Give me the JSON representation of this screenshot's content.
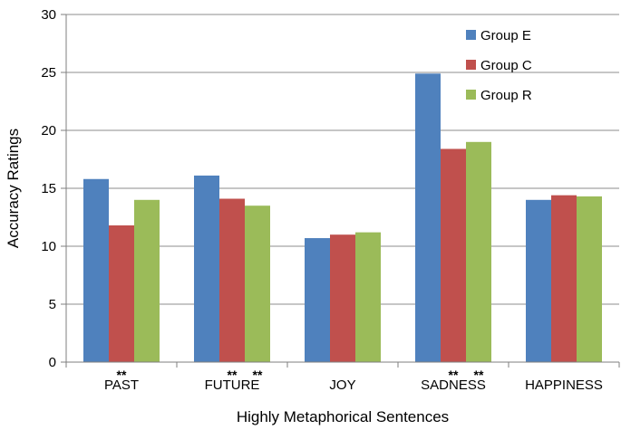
{
  "chart_data": {
    "type": "bar",
    "xlabel": "Highly Metaphorical Sentences",
    "ylabel": "Accuracy Ratings",
    "ylim": [
      0,
      30
    ],
    "yticks": [
      0,
      5,
      10,
      15,
      20,
      25,
      30
    ],
    "grid": "horizontal",
    "legend_position": "top-right",
    "categories": [
      "PAST",
      "FUTURE",
      "JOY",
      "SADNESS",
      "HAPPINESS"
    ],
    "series": [
      {
        "name": "Group E",
        "color": "#4f81bd",
        "values": [
          15.8,
          16.1,
          10.7,
          24.9,
          14.0
        ]
      },
      {
        "name": "Group C",
        "color": "#c0504d",
        "values": [
          11.8,
          14.1,
          11.0,
          18.4,
          14.4
        ]
      },
      {
        "name": "Group R",
        "color": "#9bbb59",
        "values": [
          14.0,
          13.5,
          11.2,
          19.0,
          14.3
        ]
      }
    ],
    "significance_markers": [
      {
        "category": "PAST",
        "series": "Group C",
        "text": "**"
      },
      {
        "category": "FUTURE",
        "series": "Group C",
        "text": "**"
      },
      {
        "category": "FUTURE",
        "series": "Group R",
        "text": "**"
      },
      {
        "category": "SADNESS",
        "series": "Group C",
        "text": "**"
      },
      {
        "category": "SADNESS",
        "series": "Group R",
        "text": "**"
      }
    ]
  }
}
